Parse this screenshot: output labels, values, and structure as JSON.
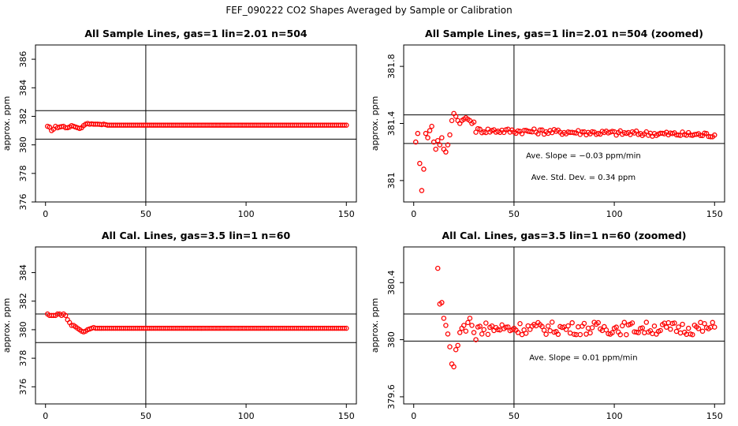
{
  "figure_title": "FEF_090222  CO2 Shapes Averaged by Sample or Calibration",
  "colors": {
    "points": "#ff0000",
    "lines": "#000000"
  },
  "chart_data": [
    {
      "type": "scatter",
      "title": "All Sample Lines, gas=1 lin=2.01 n=504",
      "xlabel": "",
      "ylabel": "approx. ppm",
      "xlim": [
        -5,
        155
      ],
      "ylim": [
        376,
        387
      ],
      "xticks": [
        0,
        50,
        100,
        150
      ],
      "yticks": [
        376,
        378,
        380,
        382,
        384,
        386
      ],
      "hlines": [
        382.4,
        380.4
      ],
      "vline": 50,
      "annotations": [],
      "series": [
        {
          "x_start": 1,
          "x_end": 150,
          "early": [
            381.3,
            381.25,
            381.0,
            381.1,
            381.3,
            381.2,
            381.25,
            381.28,
            381.3,
            381.2,
            381.2,
            381.25,
            381.35,
            381.3,
            381.25,
            381.2,
            381.15,
            381.2,
            381.35,
            381.45,
            381.5,
            381.45,
            381.47,
            381.45,
            381.45,
            381.45,
            381.44,
            381.42,
            381.45,
            381.42
          ],
          "plateau": 381.38
        }
      ]
    },
    {
      "type": "scatter",
      "title": "All Sample Lines, gas=1 lin=2.01 n=504 (zoomed)",
      "xlabel": "",
      "ylabel": "approx. ppm",
      "xlim": [
        -5,
        155
      ],
      "ylim": [
        380.85,
        381.95
      ],
      "xticks": [
        0,
        50,
        100,
        150
      ],
      "yticks": [
        381.0,
        381.4,
        381.8
      ],
      "hlines": [
        381.46,
        381.26
      ],
      "vline": 50,
      "annotations": [
        "Ave. Slope =  −0.03  ppm/min",
        "Ave. Std. Dev. =  0.34  ppm"
      ],
      "series": [
        {
          "x_start": 1,
          "x_end": 150,
          "early": [
            381.27,
            381.33,
            381.12,
            380.93,
            381.08,
            381.33,
            381.3,
            381.35,
            381.38,
            381.27,
            381.22,
            381.28,
            381.25,
            381.3,
            381.22,
            381.2,
            381.25,
            381.32,
            381.42,
            381.47,
            381.45,
            381.42,
            381.4,
            381.42,
            381.43,
            381.44,
            381.43,
            381.42,
            381.4,
            381.41
          ],
          "plateau": 381.36,
          "drift": -0.04,
          "noise": 0.018
        }
      ]
    },
    {
      "type": "scatter",
      "title": "All Cal. Lines, gas=3.5 lin=1 n=60",
      "xlabel": "",
      "ylabel": "approx. ppm",
      "xlim": [
        -5,
        155
      ],
      "ylim": [
        374.8,
        385.8
      ],
      "xticks": [
        0,
        50,
        100,
        150
      ],
      "yticks": [
        376,
        378,
        380,
        382,
        384
      ],
      "hlines": [
        381.1,
        379.1
      ],
      "vline": 50,
      "annotations": [],
      "series": [
        {
          "x_start": 1,
          "x_end": 150,
          "early": [
            381.1,
            381.0,
            381.0,
            381.0,
            381.0,
            381.1,
            381.1,
            381.0,
            381.1,
            381.0,
            380.7,
            380.5,
            380.3,
            380.3,
            380.2,
            380.1,
            380.0,
            379.9,
            379.85,
            379.9,
            380.0,
            380.05,
            380.1,
            380.15,
            380.1
          ],
          "plateau": 380.1
        }
      ]
    },
    {
      "type": "scatter",
      "title": "All Cal. Lines, gas=3.5 lin=1 n=60 (zoomed)",
      "xlabel": "",
      "ylabel": "approx. ppm",
      "xlim": [
        -5,
        155
      ],
      "ylim": [
        379.55,
        380.65
      ],
      "xticks": [
        0,
        50,
        100,
        150
      ],
      "yticks": [
        379.6,
        380.0,
        380.4
      ],
      "hlines": [
        380.18,
        379.99
      ],
      "vline": 50,
      "annotations": [
        "Ave. Slope =  0.01  ppm/min"
      ],
      "series": [
        {
          "x_start": 12,
          "x_end": 150,
          "early": [
            380.5,
            380.25,
            380.26,
            380.15,
            380.1,
            380.04,
            379.95,
            379.83,
            379.81,
            379.93,
            379.96,
            380.05,
            380.08,
            380.1,
            380.06,
            380.12,
            380.15,
            380.1,
            380.05,
            380.0
          ],
          "plateau": 380.08,
          "drift": 0.0,
          "noise": 0.045
        }
      ]
    }
  ]
}
